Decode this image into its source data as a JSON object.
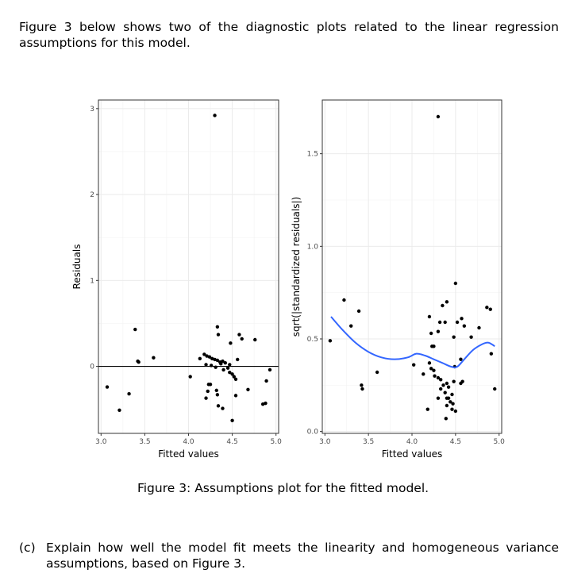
{
  "intro": "Figure 3 below shows two of the diagnostic plots related to the linear regression assumptions for this model.",
  "caption": "Figure 3: Assumptions plot for the fitted model.",
  "question": {
    "label": "(c)",
    "text": "Explain how well the model fit meets the linearity and homogeneous variance assumptions, based on Figure 3."
  },
  "colors": {
    "smooth": "#3366ff",
    "points": "#000000",
    "grid": "#ebebeb"
  },
  "chart_data": [
    {
      "type": "scatter",
      "title": "",
      "xlabel": "Fitted values",
      "ylabel": "Residuals",
      "xlim": [
        2.97,
        5.03
      ],
      "ylim": [
        -0.78,
        3.1
      ],
      "xticks": [
        "3.0",
        "3.5",
        "4.0",
        "4.5",
        "5.0"
      ],
      "yticks": [
        "0",
        "1",
        "2",
        "3"
      ],
      "hline": 0,
      "grid": true,
      "points": [
        [
          4.3,
          2.92
        ],
        [
          3.39,
          0.43
        ],
        [
          4.33,
          0.46
        ],
        [
          4.34,
          0.37
        ],
        [
          4.58,
          0.37
        ],
        [
          4.61,
          0.32
        ],
        [
          4.76,
          0.31
        ],
        [
          4.48,
          0.27
        ],
        [
          3.42,
          0.06
        ],
        [
          3.43,
          0.05
        ],
        [
          3.6,
          0.1
        ],
        [
          4.13,
          0.09
        ],
        [
          4.18,
          0.14
        ],
        [
          4.21,
          0.12
        ],
        [
          4.24,
          0.11
        ],
        [
          4.27,
          0.09
        ],
        [
          4.3,
          0.08
        ],
        [
          4.33,
          0.07
        ],
        [
          4.36,
          0.05
        ],
        [
          4.39,
          0.06
        ],
        [
          4.42,
          0.04
        ],
        [
          4.2,
          0.02
        ],
        [
          4.26,
          0.01
        ],
        [
          4.31,
          -0.01
        ],
        [
          4.37,
          0.03
        ],
        [
          4.4,
          -0.04
        ],
        [
          4.45,
          -0.02
        ],
        [
          4.47,
          -0.07
        ],
        [
          4.5,
          -0.09
        ],
        [
          4.52,
          -0.12
        ],
        [
          4.56,
          0.08
        ],
        [
          4.47,
          0.02
        ],
        [
          4.93,
          -0.04
        ],
        [
          4.02,
          -0.12
        ],
        [
          4.54,
          -0.15
        ],
        [
          4.23,
          -0.21
        ],
        [
          4.25,
          -0.21
        ],
        [
          4.22,
          -0.29
        ],
        [
          4.32,
          -0.28
        ],
        [
          4.33,
          -0.33
        ],
        [
          4.2,
          -0.37
        ],
        [
          4.68,
          -0.27
        ],
        [
          4.89,
          -0.17
        ],
        [
          4.54,
          -0.34
        ],
        [
          4.34,
          -0.46
        ],
        [
          4.39,
          -0.49
        ],
        [
          4.85,
          -0.44
        ],
        [
          4.88,
          -0.43
        ],
        [
          4.5,
          -0.63
        ],
        [
          3.07,
          -0.24
        ],
        [
          3.32,
          -0.32
        ],
        [
          3.21,
          -0.51
        ]
      ]
    },
    {
      "type": "scatter",
      "title": "",
      "xlabel": "Fitted values",
      "ylabel": "sqrt(|standardized residuals|)",
      "xlim": [
        2.97,
        5.03
      ],
      "ylim": [
        -0.01,
        1.79
      ],
      "xticks": [
        "3.0",
        "3.5",
        "4.0",
        "4.5",
        "5.0"
      ],
      "yticks": [
        "0.0",
        "0.5",
        "1.0",
        "1.5"
      ],
      "grid": true,
      "points": [
        [
          4.3,
          1.7
        ],
        [
          4.5,
          0.8
        ],
        [
          3.22,
          0.71
        ],
        [
          4.4,
          0.7
        ],
        [
          4.35,
          0.68
        ],
        [
          4.86,
          0.67
        ],
        [
          4.9,
          0.66
        ],
        [
          3.39,
          0.65
        ],
        [
          4.2,
          0.62
        ],
        [
          4.57,
          0.61
        ],
        [
          4.32,
          0.59
        ],
        [
          4.52,
          0.59
        ],
        [
          4.38,
          0.59
        ],
        [
          4.6,
          0.57
        ],
        [
          4.77,
          0.56
        ],
        [
          3.3,
          0.57
        ],
        [
          4.3,
          0.54
        ],
        [
          4.22,
          0.53
        ],
        [
          4.48,
          0.51
        ],
        [
          4.68,
          0.51
        ],
        [
          3.06,
          0.49
        ],
        [
          4.25,
          0.46
        ],
        [
          4.23,
          0.46
        ],
        [
          4.91,
          0.42
        ],
        [
          4.56,
          0.39
        ],
        [
          4.02,
          0.36
        ],
        [
          4.2,
          0.37
        ],
        [
          4.49,
          0.35
        ],
        [
          4.22,
          0.34
        ],
        [
          4.25,
          0.33
        ],
        [
          3.6,
          0.32
        ],
        [
          4.13,
          0.31
        ],
        [
          4.26,
          0.3
        ],
        [
          4.3,
          0.29
        ],
        [
          4.33,
          0.28
        ],
        [
          4.4,
          0.26
        ],
        [
          4.48,
          0.27
        ],
        [
          4.56,
          0.26
        ],
        [
          4.58,
          0.27
        ],
        [
          4.36,
          0.25
        ],
        [
          4.42,
          0.24
        ],
        [
          3.42,
          0.25
        ],
        [
          3.43,
          0.23
        ],
        [
          4.33,
          0.23
        ],
        [
          4.38,
          0.21
        ],
        [
          4.95,
          0.23
        ],
        [
          4.46,
          0.2
        ],
        [
          4.4,
          0.18
        ],
        [
          4.42,
          0.18
        ],
        [
          4.3,
          0.18
        ],
        [
          4.44,
          0.16
        ],
        [
          4.47,
          0.15
        ],
        [
          4.4,
          0.14
        ],
        [
          4.18,
          0.12
        ],
        [
          4.46,
          0.12
        ],
        [
          4.5,
          0.11
        ],
        [
          4.39,
          0.07
        ]
      ],
      "smooth": [
        [
          3.07,
          0.62
        ],
        [
          3.2,
          0.55
        ],
        [
          3.35,
          0.48
        ],
        [
          3.5,
          0.43
        ],
        [
          3.65,
          0.4
        ],
        [
          3.8,
          0.39
        ],
        [
          3.95,
          0.4
        ],
        [
          4.05,
          0.42
        ],
        [
          4.15,
          0.41
        ],
        [
          4.25,
          0.39
        ],
        [
          4.35,
          0.37
        ],
        [
          4.45,
          0.35
        ],
        [
          4.52,
          0.35
        ],
        [
          4.6,
          0.39
        ],
        [
          4.7,
          0.44
        ],
        [
          4.8,
          0.47
        ],
        [
          4.87,
          0.48
        ],
        [
          4.92,
          0.47
        ],
        [
          4.95,
          0.46
        ]
      ]
    }
  ]
}
